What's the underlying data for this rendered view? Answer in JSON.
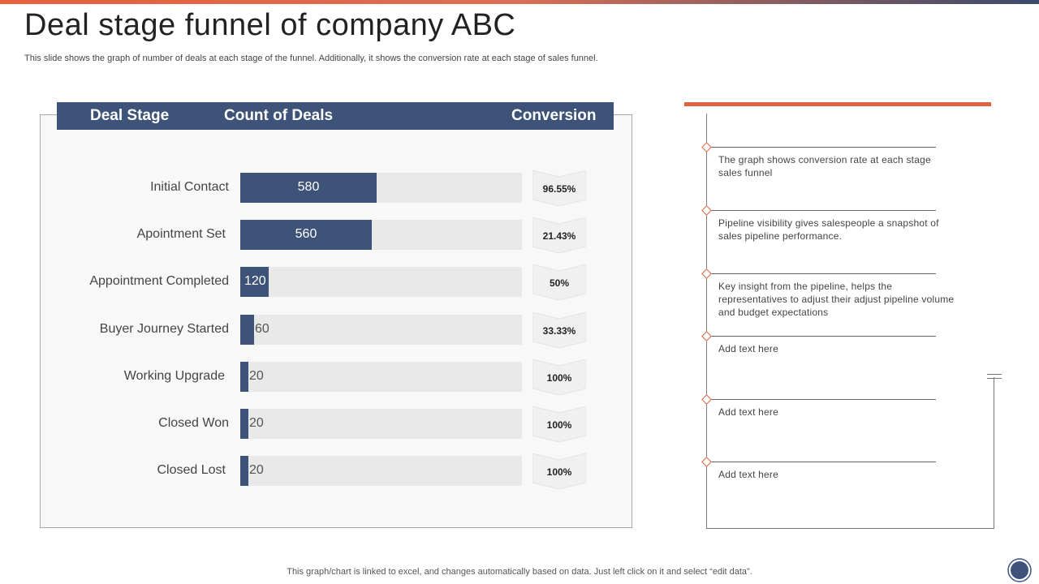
{
  "slide": {
    "title": "Deal stage funnel of company ABC",
    "subtitle": "This slide shows the graph of number of deals at each stage of the funnel. Additionally, it shows the conversion rate at each stage of sales funnel.",
    "footer": "This graph/chart is linked to excel,  and changes automatically based on data. Just left click on it and select “edit data”."
  },
  "table_header": {
    "stage": "Deal Stage",
    "count": "Count of Deals",
    "conversion": "Conversion"
  },
  "chart_data": {
    "type": "bar",
    "orientation": "horizontal",
    "title": "Deal stage funnel of company ABC",
    "categories": [
      "Initial Contact",
      "Apointment Set",
      "Appointment Completed",
      "Buyer Journey Started",
      "Working Upgrade",
      "Closed Won",
      "Closed Lost"
    ],
    "values": [
      580,
      560,
      120,
      60,
      20,
      20,
      20
    ],
    "conversion": [
      "96.55%",
      "21.43%",
      "50%",
      "33.33%",
      "100%",
      "100%",
      "100%"
    ],
    "xlim": [
      0,
      1200
    ],
    "xlabel": "Count of Deals",
    "ylabel": "Deal Stage"
  },
  "notes": [
    "The graph shows conversion rate at each stage sales funnel",
    "Pipeline visibility gives salespeople a snapshot of sales pipeline performance.",
    "Key insight from the pipeline, helps the representatives  to adjust their adjust pipeline volume and budget expectations",
    "Add text here",
    "Add text here",
    "Add text here"
  ],
  "colors": {
    "bar": "#3d5377",
    "track": "#e9e9ea",
    "accent": "#e0633f"
  }
}
